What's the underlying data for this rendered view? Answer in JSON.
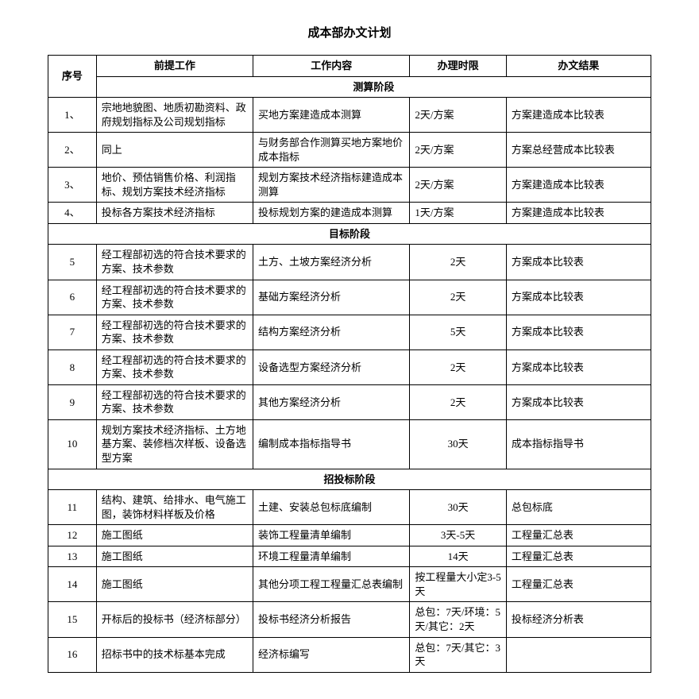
{
  "title": "成本部办文计划",
  "headers": [
    "序号",
    "前提工作",
    "工作内容",
    "办理时限",
    "办文结果"
  ],
  "sections": [
    {
      "name": "测算阶段",
      "rows": [
        {
          "no": "1、",
          "pre": "宗地地貌图、地质初勘资料、政府规划指标及公司规划指标",
          "content": "买地方案建造成本测算",
          "time": "2天/方案",
          "result": "方案建造成本比较表"
        },
        {
          "no": "2、",
          "pre": "同上",
          "content": "与财务部合作测算买地方案地价成本指标",
          "time": "2天/方案",
          "result": "方案总经营成本比较表"
        },
        {
          "no": "3、",
          "pre": "地价、预估销售价格、利润指标、规划方案技术经济指标",
          "content": "规划方案技术经济指标建造成本测算",
          "time": "2天/方案",
          "result": "方案建造成本比较表"
        },
        {
          "no": "4、",
          "pre": "投标各方案技术经济指标",
          "content": "投标规划方案的建造成本测算",
          "time": "1天/方案",
          "result": "方案建造成本比较表"
        }
      ]
    },
    {
      "name": "目标阶段",
      "rows": [
        {
          "no": "5",
          "pre": "经工程部初选的符合技术要求的方案、技术参数",
          "content": "土方、土坡方案经济分析",
          "time": "2天",
          "result": "方案成本比较表"
        },
        {
          "no": "6",
          "pre": "经工程部初选的符合技术要求的方案、技术参数",
          "content": "基础方案经济分析",
          "time": "2天",
          "result": "方案成本比较表"
        },
        {
          "no": "7",
          "pre": "经工程部初选的符合技术要求的方案、技术参数",
          "content": "结构方案经济分析",
          "time": "5天",
          "result": "方案成本比较表"
        },
        {
          "no": "8",
          "pre": "经工程部初选的符合技术要求的方案、技术参数",
          "content": "设备选型方案经济分析",
          "time": "2天",
          "result": "方案成本比较表"
        },
        {
          "no": "9",
          "pre": "经工程部初选的符合技术要求的方案、技术参数",
          "content": "其他方案经济分析",
          "time": "2天",
          "result": "方案成本比较表"
        },
        {
          "no": "10",
          "pre": "规划方案技术经济指标、土方地基方案、装修档次样板、设备选型方案",
          "content": "编制成本指标指导书",
          "time": "30天",
          "result": "成本指标指导书"
        }
      ]
    },
    {
      "name": "招投标阶段",
      "rows": [
        {
          "no": "11",
          "pre": "结构、建筑、给排水、电气施工图，装饰材料样板及价格",
          "content": "土建、安装总包标底编制",
          "time": "30天",
          "result": "总包标底"
        },
        {
          "no": "12",
          "pre": "施工图纸",
          "content": "装饰工程量清单编制",
          "time": "3天-5天",
          "result": "工程量汇总表"
        },
        {
          "no": "13",
          "pre": "施工图纸",
          "content": "环境工程量清单编制",
          "time": "14天",
          "result": "工程量汇总表"
        },
        {
          "no": "14",
          "pre": "施工图纸",
          "content": "其他分项工程工程量汇总表编制",
          "time": "按工程量大小定3-5天",
          "result": "工程量汇总表"
        },
        {
          "no": "15",
          "pre": "开标后的投标书（经济标部分）",
          "content": "投标书经济分析报告",
          "time": "总包：7天/环境：5天/其它：2天",
          "result": "投标经济分析表"
        },
        {
          "no": "16",
          "pre": "招标书中的技术标基本完成",
          "content": "经济标编写",
          "time": "总包：7天/其它：3天",
          "result": ""
        }
      ]
    }
  ]
}
